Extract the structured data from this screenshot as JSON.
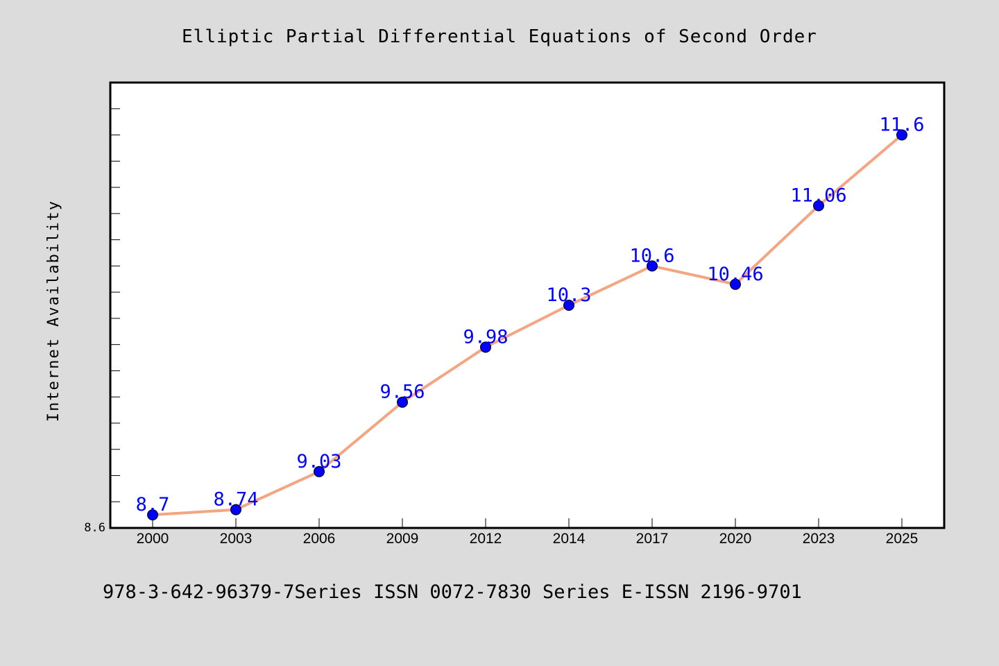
{
  "chart_data": {
    "type": "line",
    "title": "Elliptic Partial Differential Equations of Second Order",
    "ylabel": "Internet Availability",
    "xlabel": "",
    "categories": [
      "2000",
      "2003",
      "2006",
      "2009",
      "2012",
      "2014",
      "2017",
      "2020",
      "2023",
      "2025"
    ],
    "series": [
      {
        "values": [
          8.7,
          8.74,
          9.03,
          9.56,
          9.98,
          10.3,
          10.6,
          10.46,
          11.06,
          11.6
        ]
      }
    ],
    "data_labels": [
      "8.7",
      "8.74",
      "9.03",
      "9.56",
      "9.98",
      "10.3",
      "10.6",
      "10.46",
      "11.06",
      "11.6"
    ],
    "y_tick_labels": [
      "8.6"
    ],
    "ylim": [
      8.6,
      12.0
    ],
    "grid": false,
    "legend": "none",
    "colors": {
      "background": "#dcdcdc",
      "plot_area": "#ffffff",
      "line": "#f4a582",
      "marker": "#0000ff",
      "data_label": "#0000ff",
      "text": "#000000"
    }
  },
  "footer": "978-3-642-96379-7Series ISSN 0072-7830 Series E-ISSN 2196-9701"
}
